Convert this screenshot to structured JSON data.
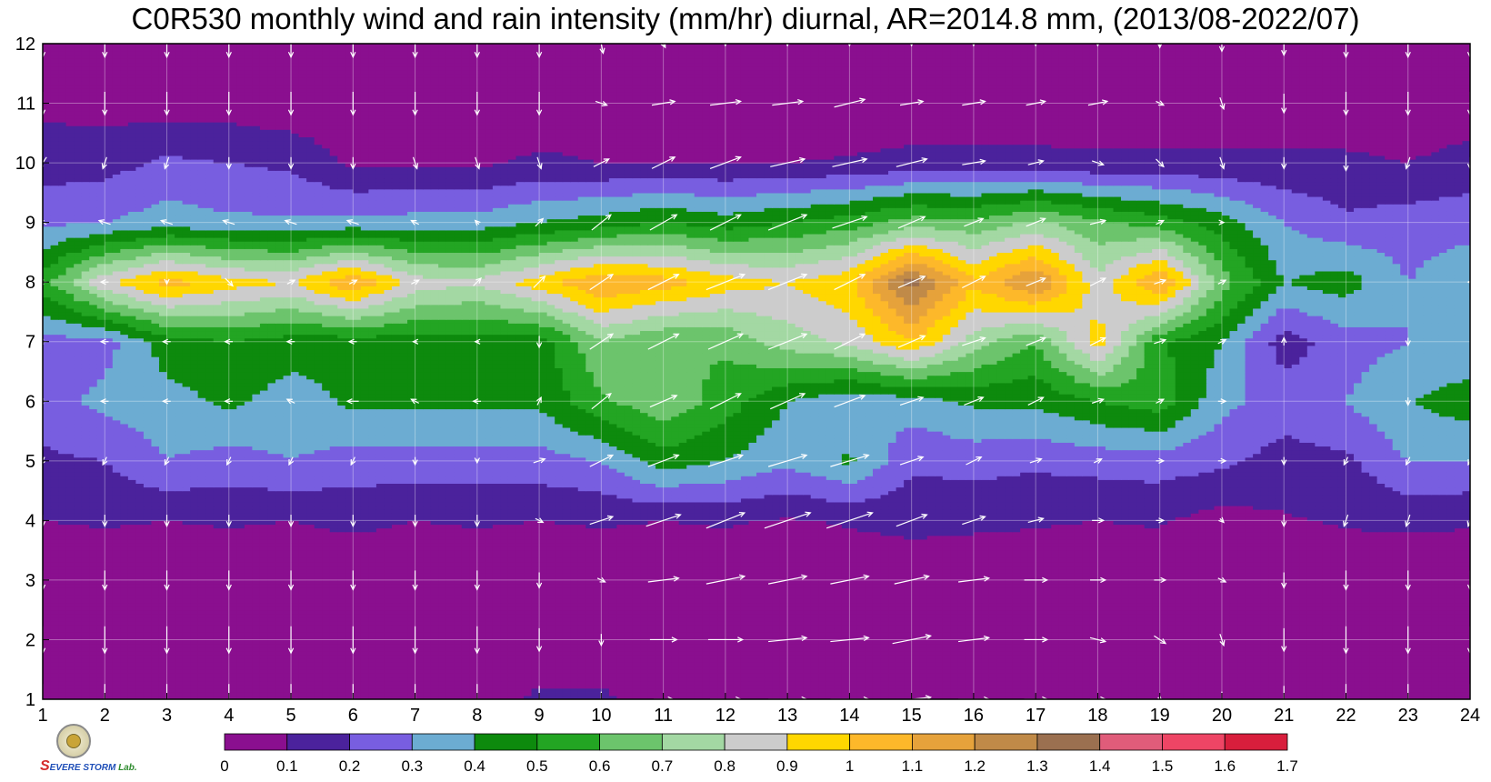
{
  "chart_data": {
    "type": "heatmap",
    "subtype": "filled-contour-with-wind-vectors",
    "title": "C0R530 monthly wind and rain intensity (mm/hr) diurnal, AR=2014.8 mm, (2013/08-2022/07)",
    "xlabel": "",
    "ylabel": "",
    "x": [
      1,
      2,
      3,
      4,
      5,
      6,
      7,
      8,
      9,
      10,
      11,
      12,
      13,
      14,
      15,
      16,
      17,
      18,
      19,
      20,
      21,
      22,
      23,
      24
    ],
    "y": [
      1,
      2,
      3,
      4,
      5,
      6,
      7,
      8,
      9,
      10,
      11,
      12
    ],
    "xlim": [
      1,
      24
    ],
    "ylim": [
      1,
      12
    ],
    "xticks": [
      "1",
      "2",
      "3",
      "4",
      "5",
      "6",
      "7",
      "8",
      "9",
      "10",
      "11",
      "12",
      "13",
      "14",
      "15",
      "16",
      "17",
      "18",
      "19",
      "20",
      "21",
      "22",
      "23",
      "24"
    ],
    "yticks": [
      "1",
      "2",
      "3",
      "4",
      "5",
      "6",
      "7",
      "8",
      "9",
      "10",
      "11",
      "12"
    ],
    "grid": true,
    "z_matrix_note": "rows indexed by y (1..12), columns by x (1..24), values in mm/hr",
    "z": [
      [
        0.03,
        0.03,
        0.03,
        0.03,
        0.03,
        0.04,
        0.04,
        0.04,
        0.12,
        0.12,
        0.05,
        0.03,
        0.03,
        0.03,
        0.03,
        0.03,
        0.03,
        0.03,
        0.03,
        0.03,
        0.03,
        0.03,
        0.03,
        0.03
      ],
      [
        0.02,
        0.02,
        0.02,
        0.02,
        0.02,
        0.02,
        0.02,
        0.02,
        0.02,
        0.02,
        0.02,
        0.02,
        0.02,
        0.02,
        0.02,
        0.02,
        0.02,
        0.02,
        0.02,
        0.02,
        0.02,
        0.02,
        0.02,
        0.02
      ],
      [
        0.03,
        0.03,
        0.03,
        0.03,
        0.03,
        0.03,
        0.03,
        0.03,
        0.03,
        0.03,
        0.03,
        0.03,
        0.03,
        0.03,
        0.03,
        0.03,
        0.03,
        0.03,
        0.03,
        0.03,
        0.03,
        0.03,
        0.03,
        0.03
      ],
      [
        0.1,
        0.11,
        0.1,
        0.11,
        0.1,
        0.12,
        0.1,
        0.11,
        0.1,
        0.11,
        0.1,
        0.11,
        0.09,
        0.11,
        0.13,
        0.12,
        0.11,
        0.1,
        0.11,
        0.06,
        0.09,
        0.11,
        0.12,
        0.11
      ],
      [
        0.18,
        0.2,
        0.3,
        0.26,
        0.3,
        0.26,
        0.26,
        0.26,
        0.26,
        0.3,
        0.45,
        0.4,
        0.32,
        0.42,
        0.22,
        0.24,
        0.22,
        0.24,
        0.25,
        0.22,
        0.16,
        0.18,
        0.3,
        0.3
      ],
      [
        0.25,
        0.33,
        0.36,
        0.42,
        0.35,
        0.42,
        0.42,
        0.42,
        0.42,
        0.58,
        0.68,
        0.55,
        0.4,
        0.32,
        0.35,
        0.42,
        0.42,
        0.5,
        0.55,
        0.33,
        0.25,
        0.3,
        0.4,
        0.45
      ],
      [
        0.26,
        0.26,
        0.45,
        0.5,
        0.45,
        0.44,
        0.46,
        0.45,
        0.44,
        0.7,
        0.6,
        0.62,
        0.75,
        0.82,
        1.0,
        0.75,
        0.6,
        0.95,
        0.52,
        0.4,
        0.15,
        0.25,
        0.3,
        0.32
      ],
      [
        0.55,
        0.88,
        1.05,
        0.95,
        0.9,
        1.1,
        0.85,
        0.82,
        0.96,
        1.1,
        1.05,
        0.95,
        0.9,
        0.98,
        1.35,
        1.02,
        1.22,
        0.83,
        1.12,
        0.65,
        0.4,
        0.45,
        0.3,
        0.38
      ],
      [
        0.28,
        0.3,
        0.35,
        0.32,
        0.32,
        0.33,
        0.34,
        0.35,
        0.4,
        0.45,
        0.5,
        0.45,
        0.5,
        0.55,
        0.65,
        0.63,
        0.72,
        0.62,
        0.55,
        0.45,
        0.3,
        0.22,
        0.25,
        0.26
      ],
      [
        0.15,
        0.16,
        0.22,
        0.2,
        0.18,
        0.08,
        0.09,
        0.08,
        0.12,
        0.1,
        0.1,
        0.1,
        0.1,
        0.11,
        0.13,
        0.13,
        0.13,
        0.12,
        0.12,
        0.12,
        0.12,
        0.12,
        0.1,
        0.14
      ],
      [
        0.08,
        0.06,
        0.05,
        0.05,
        0.03,
        0.03,
        0.03,
        0.03,
        0.03,
        0.03,
        0.03,
        0.03,
        0.03,
        0.03,
        0.03,
        0.03,
        0.03,
        0.03,
        0.03,
        0.03,
        0.03,
        0.03,
        0.03,
        0.03
      ],
      [
        0.02,
        0.02,
        0.08,
        0.02,
        0.02,
        0.02,
        0.02,
        0.02,
        0.02,
        0.02,
        0.02,
        0.02,
        0.02,
        0.02,
        0.02,
        0.02,
        0.02,
        0.02,
        0.02,
        0.02,
        0.02,
        0.02,
        0.08,
        0.02
      ]
    ],
    "wind_u": [
      [
        0.0,
        0.0,
        0.0,
        0.0,
        0.0,
        0.0,
        0.0,
        0.0,
        0.0,
        0.0,
        0.5,
        0.8,
        1.0,
        1.0,
        1.0,
        0.8,
        0.6,
        0.4,
        0.1,
        0.0,
        0.0,
        0.0,
        0.0,
        0.0
      ],
      [
        0.0,
        0.0,
        0.0,
        0.0,
        0.0,
        0.0,
        0.0,
        0.0,
        0.0,
        0.0,
        0.7,
        0.9,
        1.0,
        1.0,
        1.0,
        0.8,
        0.6,
        0.4,
        0.3,
        0.1,
        0.0,
        0.0,
        0.0,
        0.0
      ],
      [
        0.0,
        0.0,
        0.0,
        0.0,
        0.0,
        0.0,
        0.0,
        0.0,
        0.0,
        0.2,
        0.8,
        1.0,
        1.0,
        1.0,
        0.9,
        0.8,
        0.6,
        0.4,
        0.3,
        0.2,
        0.0,
        0.0,
        0.0,
        0.0
      ],
      [
        0.0,
        0.0,
        0.0,
        0.0,
        0.0,
        0.0,
        0.0,
        0.0,
        0.2,
        0.6,
        0.9,
        1.0,
        1.2,
        1.2,
        0.8,
        0.6,
        0.4,
        0.3,
        0.2,
        0.1,
        0.0,
        -0.1,
        -0.1,
        -0.1
      ],
      [
        -0.1,
        -0.1,
        -0.1,
        -0.1,
        -0.1,
        -0.1,
        0.0,
        0.0,
        0.3,
        0.6,
        0.8,
        0.9,
        1.0,
        1.0,
        0.6,
        0.4,
        0.3,
        0.2,
        0.2,
        0.2,
        0.0,
        -0.1,
        -0.1,
        -0.1
      ],
      [
        -0.2,
        -0.2,
        -0.2,
        -0.2,
        -0.2,
        -0.3,
        -0.2,
        -0.2,
        0.1,
        0.5,
        0.7,
        0.8,
        0.9,
        0.8,
        0.6,
        0.5,
        0.4,
        0.3,
        0.2,
        0.2,
        0.0,
        0.0,
        0.0,
        0.0
      ],
      [
        -0.2,
        -0.2,
        -0.2,
        -0.2,
        -0.2,
        -0.2,
        -0.1,
        -0.1,
        0.0,
        0.6,
        0.8,
        0.9,
        1.0,
        0.8,
        0.7,
        0.6,
        0.5,
        0.4,
        0.3,
        0.2,
        0.0,
        0.0,
        0.0,
        0.0
      ],
      [
        -0.2,
        -0.2,
        0.0,
        0.2,
        0.2,
        0.2,
        0.2,
        0.2,
        0.3,
        0.6,
        0.8,
        1.0,
        1.0,
        0.8,
        0.7,
        0.6,
        0.5,
        0.4,
        0.3,
        0.2,
        0.0,
        0.0,
        0.0,
        -0.1
      ],
      [
        -0.2,
        -0.3,
        -0.3,
        -0.3,
        -0.3,
        -0.3,
        -0.2,
        -0.1,
        0.2,
        0.5,
        0.7,
        0.8,
        1.0,
        0.9,
        0.7,
        0.5,
        0.5,
        0.4,
        0.2,
        0.1,
        0.0,
        0.0,
        0.0,
        0.0
      ],
      [
        -0.2,
        -0.1,
        -0.1,
        0.0,
        0.0,
        0.0,
        0.1,
        0.1,
        0.1,
        0.4,
        0.6,
        0.8,
        0.9,
        0.9,
        0.8,
        0.6,
        0.4,
        0.3,
        0.2,
        0.1,
        0.0,
        0.0,
        -0.1,
        0.0
      ],
      [
        0.0,
        0.0,
        0.0,
        0.0,
        0.0,
        0.0,
        0.0,
        0.0,
        0.0,
        0.3,
        0.6,
        0.8,
        0.8,
        0.8,
        0.6,
        0.6,
        0.5,
        0.5,
        0.2,
        0.1,
        0.0,
        0.0,
        0.0,
        0.0
      ],
      [
        0.0,
        0.0,
        0.0,
        0.0,
        0.0,
        0.0,
        0.0,
        0.0,
        0.0,
        0.1,
        0.1,
        0.0,
        0.0,
        0.0,
        0.0,
        0.0,
        0.0,
        0.0,
        0.0,
        0.0,
        0.0,
        0.0,
        0.0,
        0.0
      ]
    ],
    "wind_v": [
      [
        -0.8,
        -0.8,
        -0.8,
        -0.8,
        -0.8,
        -0.8,
        -0.8,
        -0.8,
        -0.7,
        -0.4,
        0.0,
        0.0,
        0.0,
        0.0,
        0.1,
        0.0,
        0.0,
        0.0,
        -0.1,
        -0.4,
        -0.7,
        -0.8,
        -0.8,
        -0.8
      ],
      [
        -0.7,
        -0.7,
        -0.7,
        -0.7,
        -0.7,
        -0.7,
        -0.7,
        -0.7,
        -0.6,
        -0.3,
        0.0,
        0.0,
        0.1,
        0.1,
        0.2,
        0.1,
        0.0,
        -0.1,
        -0.2,
        -0.3,
        -0.6,
        -0.7,
        -0.7,
        -0.7
      ],
      [
        -0.5,
        -0.5,
        -0.5,
        -0.5,
        -0.5,
        -0.5,
        -0.5,
        -0.5,
        -0.4,
        -0.1,
        0.1,
        0.2,
        0.2,
        0.2,
        0.2,
        0.1,
        0.0,
        0.0,
        0.0,
        -0.1,
        -0.4,
        -0.5,
        -0.5,
        -0.5
      ],
      [
        -0.3,
        -0.3,
        -0.3,
        -0.3,
        -0.3,
        -0.3,
        -0.3,
        -0.3,
        -0.1,
        0.2,
        0.3,
        0.4,
        0.4,
        0.4,
        0.3,
        0.2,
        0.1,
        0.0,
        0.0,
        -0.1,
        -0.3,
        -0.3,
        -0.3,
        -0.3
      ],
      [
        -0.2,
        -0.2,
        -0.2,
        -0.2,
        -0.2,
        -0.2,
        -0.2,
        -0.1,
        0.1,
        0.3,
        0.3,
        0.3,
        0.3,
        0.3,
        0.2,
        0.2,
        0.1,
        0.1,
        0.0,
        0.0,
        -0.2,
        -0.2,
        -0.2,
        -0.2
      ],
      [
        0.0,
        0.0,
        0.0,
        0.0,
        0.1,
        0.0,
        0.1,
        0.0,
        0.2,
        0.4,
        0.3,
        0.4,
        0.4,
        0.3,
        0.2,
        0.2,
        0.2,
        0.1,
        0.1,
        0.0,
        0.0,
        0.0,
        -0.2,
        0.0
      ],
      [
        0.0,
        0.0,
        0.0,
        0.0,
        0.0,
        0.0,
        0.0,
        0.0,
        -0.3,
        0.4,
        0.4,
        0.4,
        0.4,
        0.4,
        0.3,
        0.2,
        0.2,
        0.2,
        0.1,
        0.1,
        0.2,
        0.0,
        -0.2,
        0.0
      ],
      [
        0.0,
        0.0,
        -0.1,
        -0.2,
        0.1,
        0.1,
        0.1,
        0.2,
        0.3,
        0.4,
        0.4,
        0.4,
        0.4,
        0.4,
        0.3,
        0.3,
        0.2,
        0.2,
        0.1,
        0.1,
        0.0,
        0.0,
        0.0,
        0.0
      ],
      [
        0.1,
        0.1,
        0.1,
        0.1,
        0.1,
        0.1,
        0.1,
        0.1,
        0.2,
        0.4,
        0.4,
        0.4,
        0.4,
        0.3,
        0.3,
        0.2,
        0.2,
        0.1,
        0.1,
        0.0,
        0.0,
        0.0,
        0.0,
        0.0
      ],
      [
        -0.3,
        -0.3,
        -0.3,
        -0.3,
        -0.3,
        -0.3,
        -0.3,
        -0.3,
        -0.3,
        0.2,
        0.3,
        0.3,
        0.2,
        0.2,
        0.2,
        0.1,
        0.1,
        -0.1,
        -0.2,
        -0.3,
        -0.3,
        -0.4,
        -0.3,
        -0.3
      ],
      [
        -0.6,
        -0.6,
        -0.6,
        -0.6,
        -0.6,
        -0.6,
        -0.6,
        -0.6,
        -0.6,
        -0.1,
        0.1,
        0.1,
        0.1,
        0.2,
        0.1,
        0.1,
        0.1,
        0.1,
        -0.1,
        -0.3,
        -0.5,
        -0.6,
        -0.6,
        -0.6
      ],
      [
        -0.7,
        -0.7,
        -0.7,
        -0.7,
        -0.7,
        -0.7,
        -0.7,
        -0.7,
        -0.7,
        -0.5,
        -0.2,
        -0.1,
        -0.1,
        -0.1,
        -0.1,
        -0.1,
        -0.1,
        -0.1,
        -0.2,
        -0.4,
        -0.6,
        -0.7,
        -0.7,
        -0.7
      ]
    ],
    "colorbar": {
      "placement": "bottom",
      "levels": [
        0,
        0.1,
        0.2,
        0.3,
        0.4,
        0.5,
        0.6,
        0.7,
        0.8,
        0.9,
        1,
        1.1,
        1.2,
        1.3,
        1.4,
        1.5,
        1.6,
        1.7
      ],
      "labels": [
        "0",
        "0.1",
        "0.2",
        "0.3",
        "0.4",
        "0.5",
        "0.6",
        "0.7",
        "0.8",
        "0.9",
        "1",
        "1.1",
        "1.2",
        "1.3",
        "1.4",
        "1.5",
        "1.6",
        "1.7"
      ],
      "colors": [
        "#8a0f8f",
        "#4b229c",
        "#785ee0",
        "#6cacd2",
        "#0d8a0d",
        "#23a523",
        "#6cc46c",
        "#a3d8a3",
        "#cccccc",
        "#ffd700",
        "#fdb82a",
        "#e6a23b",
        "#c08a48",
        "#9b7050",
        "#e05c7a",
        "#ee4565",
        "#d81e3c"
      ]
    },
    "contour_line_color": "#f0a020",
    "vector_color": "#ffffff"
  },
  "logo": {
    "lab_name_parts": [
      "S",
      "EVERE ",
      "STORM",
      " Lab."
    ]
  }
}
